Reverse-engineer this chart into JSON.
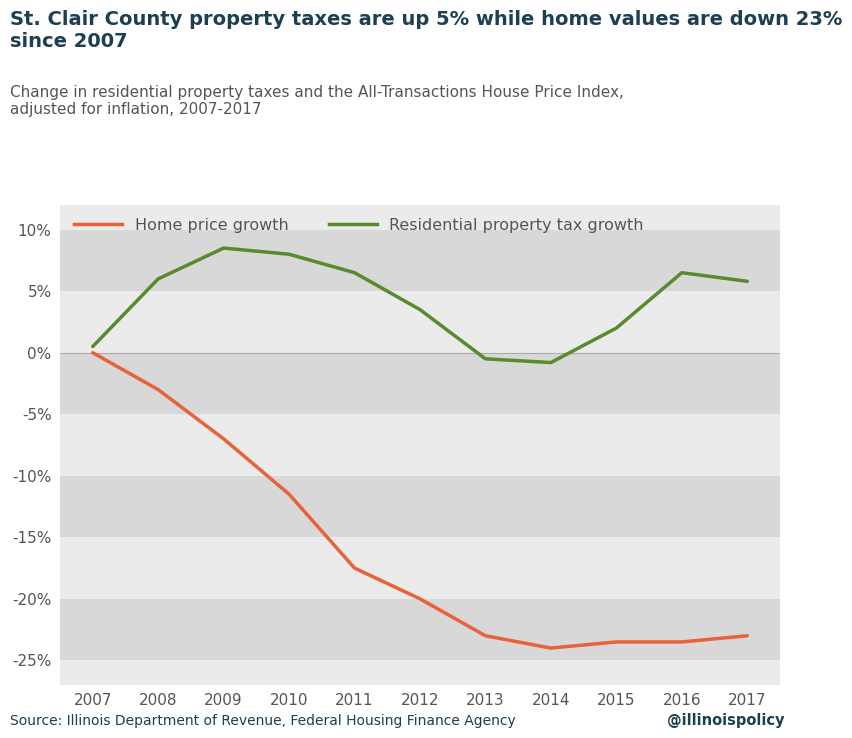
{
  "title_bold": "St. Clair County property taxes are up 5% while home values are down 23%\nsince 2007",
  "subtitle": "Change in residential property taxes and the All-Transactions House Price Index,\nadjusted for inflation, 2007-2017",
  "years": [
    2007,
    2008,
    2009,
    2010,
    2011,
    2012,
    2013,
    2014,
    2015,
    2016,
    2017
  ],
  "home_price": [
    0.0,
    -3.0,
    -7.0,
    -11.5,
    -17.5,
    -20.0,
    -23.0,
    -24.0,
    -23.5,
    -23.5,
    -23.0
  ],
  "property_tax": [
    0.5,
    6.0,
    8.5,
    8.0,
    6.5,
    3.5,
    -0.5,
    -0.8,
    2.0,
    6.5,
    5.8
  ],
  "home_color": "#e8623a",
  "tax_color": "#5a8a2e",
  "legend_home": "Home price growth",
  "legend_tax": "Residential property tax growth",
  "ylim": [
    -27,
    12
  ],
  "yticks": [
    -25,
    -20,
    -15,
    -10,
    -5,
    0,
    5,
    10
  ],
  "ytick_labels": [
    "-25%",
    "-20%",
    "-15%",
    "-10%",
    "-5%",
    "0%",
    "5%",
    "10%"
  ],
  "source_text": "Source: Illinois Department of Revenue, Federal Housing Finance Agency",
  "watermark": "@illinoispolicy",
  "background_color": "#ffffff",
  "plot_bg_color": "#ebebeb",
  "stripe_color": "#d8d8d8",
  "title_color": "#1c3f52",
  "subtitle_color": "#555555",
  "axis_color": "#555555",
  "line_width": 2.5,
  "band_edges": [
    -25,
    -20,
    -15,
    -10,
    -5,
    0,
    5,
    10
  ]
}
